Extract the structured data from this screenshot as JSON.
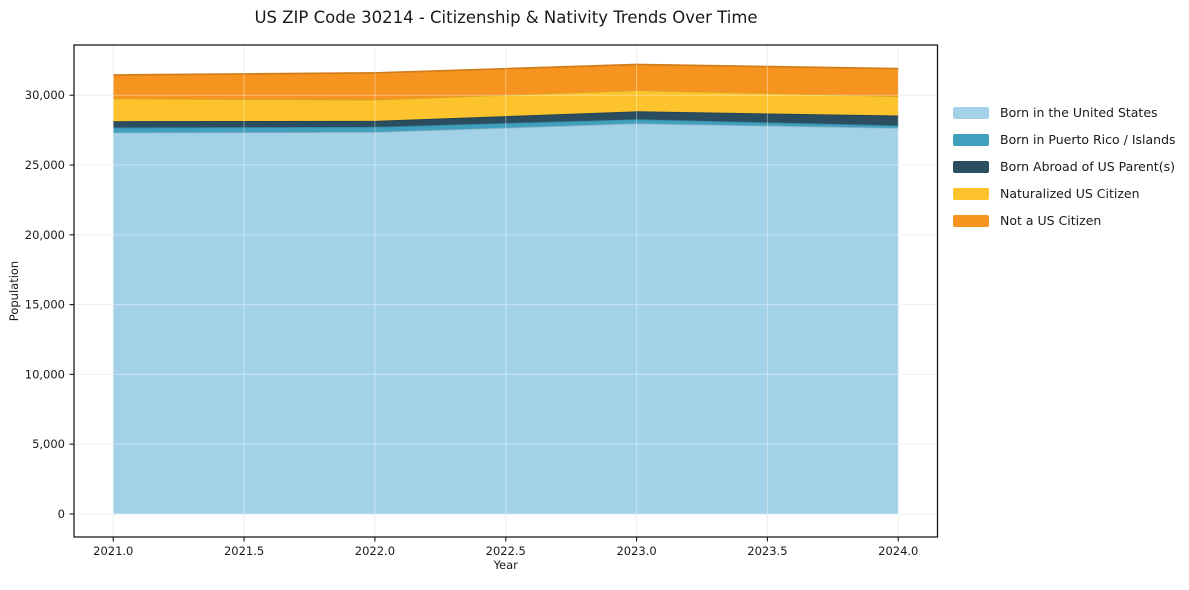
{
  "chart_data": {
    "type": "area",
    "stacked": true,
    "title": "US ZIP Code 30214 - Citizenship & Nativity Trends Over Time",
    "xlabel": "Year",
    "ylabel": "Population",
    "x": [
      2021,
      2022,
      2023,
      2024
    ],
    "series": [
      {
        "name": "Born in the United States",
        "color": "#A3D2E8",
        "values": [
          27330,
          27370,
          27980,
          27660
        ]
      },
      {
        "name": "Born in Puerto Rico / Islands",
        "color": "#41A0BE",
        "values": [
          360,
          360,
          300,
          170
        ]
      },
      {
        "name": "Born Abroad of US Parent(s)",
        "color": "#2A4E60",
        "values": [
          450,
          430,
          570,
          720
        ]
      },
      {
        "name": "Naturalized US Citizen",
        "color": "#FDC32C",
        "values": [
          1630,
          1530,
          1510,
          1380
        ]
      },
      {
        "name": "Not a US Citizen",
        "color": "#F6941F",
        "values": [
          1680,
          1910,
          1840,
          1980
        ]
      }
    ],
    "totals": [
      31450,
      31600,
      32200,
      31910
    ],
    "xlim": [
      2020.85,
      2024.15
    ],
    "ylim": [
      -1650,
      33600
    ],
    "xticks": [
      2021.0,
      2021.5,
      2022.0,
      2022.5,
      2023.0,
      2023.5,
      2024.0
    ],
    "xtick_labels": [
      "2021.0",
      "2021.5",
      "2022.0",
      "2022.5",
      "2023.0",
      "2023.5",
      "2024.0"
    ],
    "yticks": [
      0,
      5000,
      10000,
      15000,
      20000,
      25000,
      30000
    ],
    "ytick_labels": [
      "0",
      "5,000",
      "10,000",
      "15,000",
      "20,000",
      "25,000",
      "30,000"
    ],
    "grid": true,
    "legend_position": "right-outside"
  }
}
